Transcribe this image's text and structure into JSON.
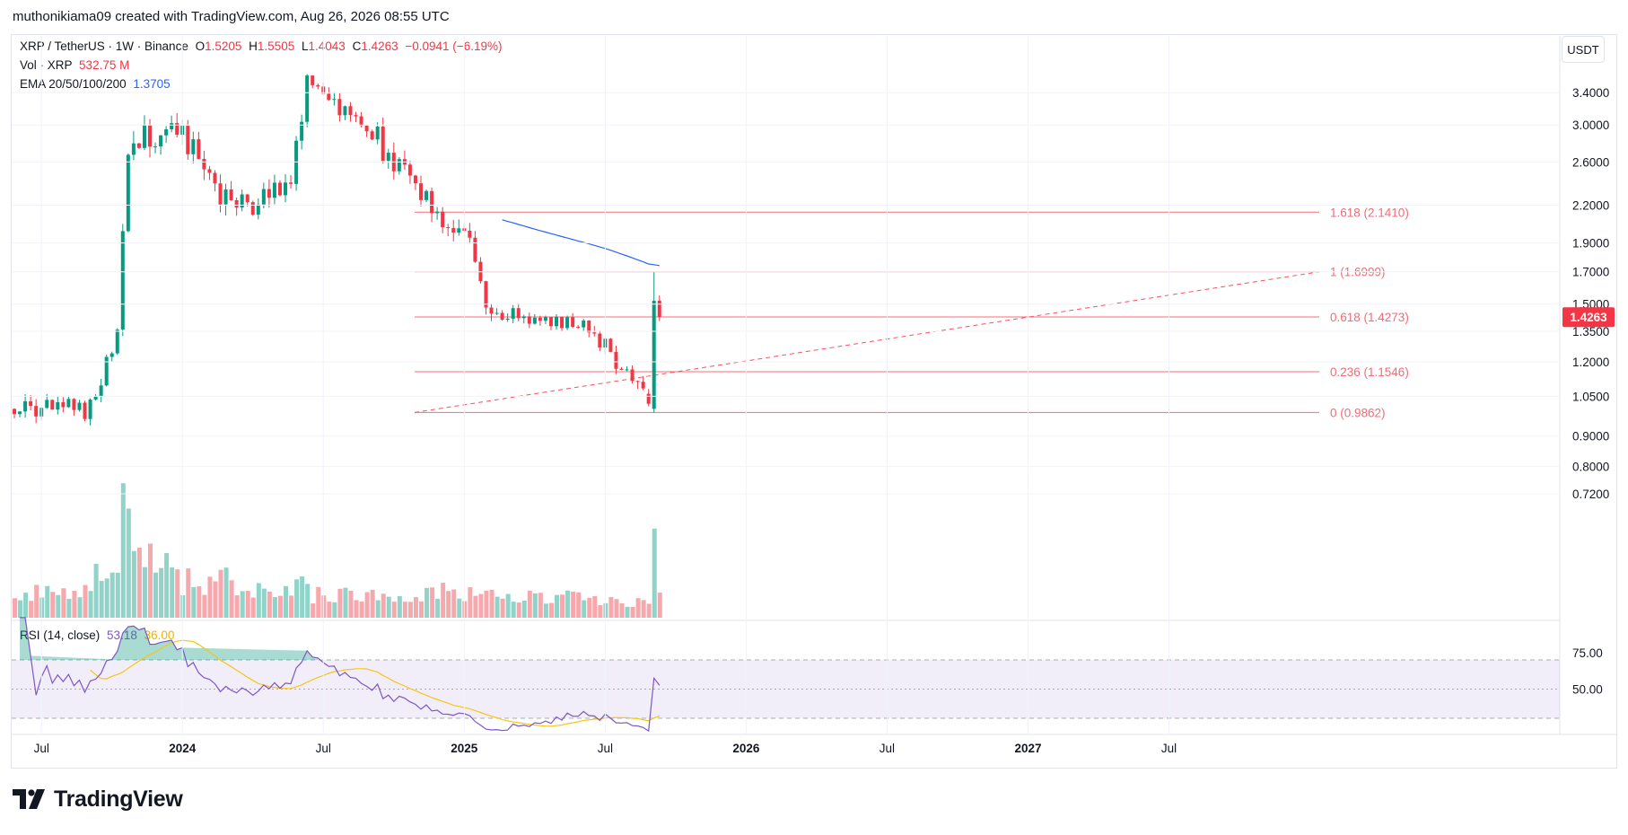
{
  "header": {
    "attribution": "muthonikiama09 created with TradingView.com, Aug 26, 2026 08:55 UTC"
  },
  "legend": {
    "symbol": "XRP / TetherUS · 1W · Binance",
    "o_label": "O",
    "o_value": "1.5205",
    "h_label": "H",
    "h_value": "1.5505",
    "l_label": "L",
    "l_value": "1.4043",
    "c_label": "C",
    "c_value": "1.4263",
    "change": "−0.0941 (−6.19%)",
    "vol_label": "Vol · XRP",
    "vol_value": "532.75 M",
    "ema_label": "EMA 20/50/100/200",
    "ema_value": "1.3705",
    "rsi_label": "RSI (14, close)",
    "rsi_value": "53.18",
    "rsi_ma_value": "36.00"
  },
  "price_axis": {
    "unit_button": "USDT",
    "current_price_badge": "1.4263"
  },
  "brand": {
    "name": "TradingView"
  },
  "colors": {
    "up": "#089981",
    "down": "#f23645",
    "ema": "#2962ff",
    "rsi": "#7e57c2",
    "rsi_ma": "#f5c518",
    "fib": "#f7525f"
  },
  "chart_data": {
    "type": "candlestick",
    "timeframe": "1W",
    "y_scale": "log",
    "y_range": [
      0.66,
      3.75
    ],
    "price_tick_labels": [
      "3.4000",
      "3.0000",
      "2.6000",
      "2.2000",
      "1.9000",
      "1.7000",
      "1.5000",
      "1.3500",
      "1.2000",
      "1.0500",
      "0.9000",
      "0.8000",
      "0.7200"
    ],
    "time_tick_labels": [
      "Jul",
      "2024",
      "Jul",
      "2025",
      "Jul",
      "2026",
      "Jul",
      "2027",
      "Jul"
    ],
    "time_ticks_bold": [
      false,
      true,
      false,
      true,
      false,
      true,
      false,
      true,
      false
    ],
    "fib_levels": [
      {
        "label": "1.618 (2.1410)",
        "price": 2.141
      },
      {
        "label": "1 (1.6999)",
        "price": 1.6999
      },
      {
        "label": "0.618 (1.4273)",
        "price": 1.4273
      },
      {
        "label": "0.236 (1.1546)",
        "price": 1.1546
      },
      {
        "label": "0 (0.9862)",
        "price": 0.9862
      }
    ],
    "segments": [
      {
        "n": 15,
        "from": 1.0,
        "to": 1.0,
        "vol": 9,
        "noise": 0.04
      },
      {
        "n": 5,
        "from": 1.0,
        "to": 1.36,
        "vol": 14,
        "noise": 0.04
      },
      {
        "n": 2,
        "from": 1.36,
        "to": 2.7,
        "vol": 38,
        "noise": 0.05
      },
      {
        "n": 8,
        "from": 2.7,
        "to": 3.0,
        "vol": 20,
        "noise": 0.07
      },
      {
        "n": 12,
        "from": 3.0,
        "to": 2.15,
        "vol": 13,
        "noise": 0.06
      },
      {
        "n": 10,
        "from": 2.15,
        "to": 2.45,
        "vol": 9,
        "noise": 0.06
      },
      {
        "n": 3,
        "from": 2.45,
        "to": 3.5,
        "vol": 12,
        "noise": 0.05
      },
      {
        "n": 12,
        "from": 3.5,
        "to": 2.9,
        "vol": 8,
        "noise": 0.04
      },
      {
        "n": 6,
        "from": 2.9,
        "to": 2.45,
        "vol": 9,
        "noise": 0.06
      },
      {
        "n": 12,
        "from": 2.45,
        "to": 1.9,
        "vol": 9,
        "noise": 0.05
      },
      {
        "n": 4,
        "from": 1.9,
        "to": 1.45,
        "vol": 11,
        "noise": 0.05
      },
      {
        "n": 18,
        "from": 1.45,
        "to": 1.38,
        "vol": 7,
        "noise": 0.03
      },
      {
        "n": 10,
        "from": 1.38,
        "to": 1.05,
        "vol": 6,
        "noise": 0.04
      }
    ],
    "tail_candles": [
      {
        "o": 1.06,
        "h": 1.08,
        "l": 1.01,
        "c": 1.02,
        "vol": 5
      },
      {
        "o": 1.0,
        "h": 1.7,
        "l": 0.9862,
        "c": 1.52,
        "vol": 32
      },
      {
        "o": 1.5205,
        "h": 1.5505,
        "l": 1.4043,
        "c": 1.4263,
        "vol": 9
      }
    ],
    "ema_100_last": 1.3705,
    "rsi": {
      "period": 14,
      "last": 53.18,
      "ma_last": 36.0,
      "ticks": [
        75,
        50
      ],
      "band": [
        70,
        30
      ],
      "overbought_peak": 88
    }
  }
}
